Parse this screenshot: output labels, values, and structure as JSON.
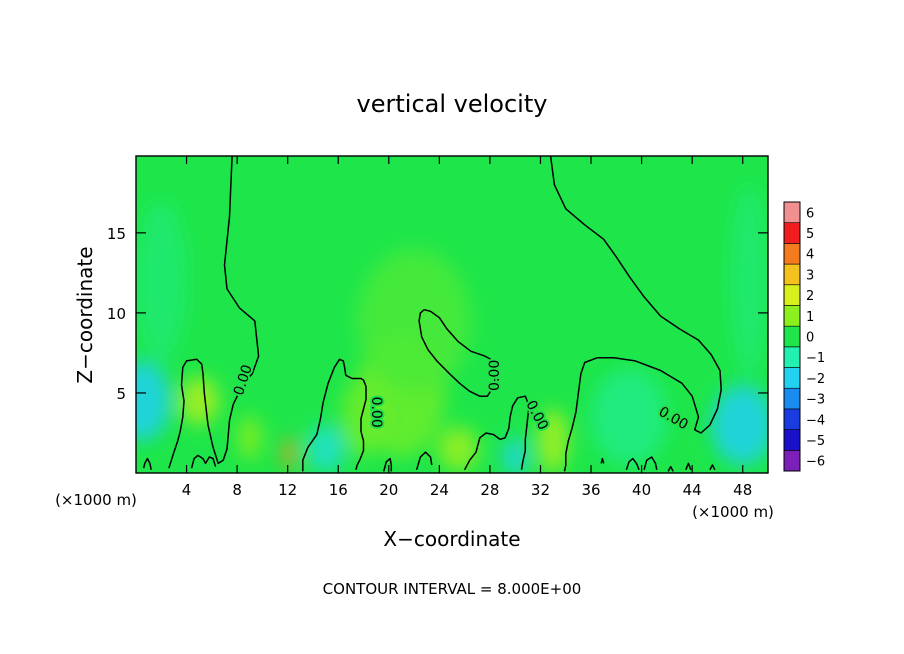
{
  "chart_data": {
    "type": "heatmap",
    "title": "vertical velocity",
    "xlabel": "X−coordinate",
    "ylabel": "Z−coordinate",
    "x_unit": "(×1000 m)",
    "x_unit_right": "(×1000 m)",
    "xlim": [
      0,
      50
    ],
    "ylim": [
      0,
      19.8
    ],
    "x_ticks": [
      4,
      8,
      12,
      16,
      20,
      24,
      28,
      32,
      36,
      40,
      44,
      48
    ],
    "x_tick_labels": [
      "4",
      "8",
      "12",
      "16",
      "20",
      "24",
      "28",
      "32",
      "36",
      "40",
      "44",
      "48"
    ],
    "y_ticks": [
      5,
      10,
      15
    ],
    "y_tick_labels": [
      "5",
      "10",
      "15"
    ],
    "colorbar": {
      "levels": [
        -6,
        -5,
        -4,
        -3,
        -2,
        -1,
        0,
        1,
        2,
        3,
        4,
        5,
        6
      ],
      "labels": [
        "−6",
        "−5",
        "−4",
        "−3",
        "−2",
        "−1",
        "0",
        "1",
        "2",
        "3",
        "4",
        "5",
        "6"
      ],
      "colors": [
        "#7a1fb8",
        "#1a10c8",
        "#1a3be0",
        "#1a8cf0",
        "#22d0f0",
        "#22f0b0",
        "#1ee64a",
        "#8cf01e",
        "#d8f01e",
        "#f4c21e",
        "#f47a1e",
        "#f01e1e",
        "#f09090"
      ]
    },
    "background_value": 0,
    "zero_contour_label": "0.00",
    "anomalies": [
      {
        "x": 0.5,
        "z": 4.5,
        "value": -2.0,
        "rx": 2.2,
        "rz": 2.5
      },
      {
        "x": 5.0,
        "z": 4.5,
        "value": 1.4,
        "rx": 1.6,
        "rz": 1.5
      },
      {
        "x": 9.0,
        "z": 2.2,
        "value": 0.9,
        "rx": 1.0,
        "rz": 1.4
      },
      {
        "x": 12.1,
        "z": 1.2,
        "value": 3.6,
        "rx": 0.5,
        "rz": 1.0
      },
      {
        "x": 15.0,
        "z": 1.5,
        "value": -1.5,
        "rx": 1.5,
        "rz": 1.5
      },
      {
        "x": 18.0,
        "z": 3.5,
        "value": 0.7,
        "rx": 1.8,
        "rz": 2.5
      },
      {
        "x": 21.0,
        "z": 5.0,
        "value": 0.7,
        "rx": 3.5,
        "rz": 4.0
      },
      {
        "x": 22.0,
        "z": 9.5,
        "value": 0.4,
        "rx": 4.5,
        "rz": 4.5
      },
      {
        "x": 25.5,
        "z": 1.5,
        "value": 1.2,
        "rx": 1.6,
        "rz": 1.4
      },
      {
        "x": 30.0,
        "z": 1.0,
        "value": -1.8,
        "rx": 1.0,
        "rz": 1.2
      },
      {
        "x": 33.0,
        "z": 2.0,
        "value": 1.4,
        "rx": 1.2,
        "rz": 2.0
      },
      {
        "x": 39.0,
        "z": 3.5,
        "value": -0.6,
        "rx": 3.0,
        "rz": 3.0
      },
      {
        "x": 48.0,
        "z": 3.0,
        "value": -2.0,
        "rx": 2.5,
        "rz": 2.5
      },
      {
        "x": 48.5,
        "z": 12.0,
        "value": -0.4,
        "rx": 1.5,
        "rz": 6.0
      },
      {
        "x": 2.0,
        "z": 12.0,
        "value": -0.4,
        "rx": 2.0,
        "rz": 5.0
      }
    ],
    "zero_contours": [
      [
        [
          7.6,
          19.8
        ],
        [
          7.4,
          16
        ],
        [
          7.0,
          13
        ],
        [
          7.2,
          11.5
        ],
        [
          8.2,
          10.3
        ],
        [
          9.4,
          9.5
        ],
        [
          9.7,
          7.3
        ],
        [
          9.2,
          6.2
        ],
        [
          8.6,
          5.7
        ],
        [
          8.2,
          5.1
        ],
        [
          7.7,
          4.3
        ],
        [
          7.4,
          3.3
        ],
        [
          7.3,
          2.4
        ],
        [
          7.2,
          1.5
        ],
        [
          6.9,
          0.8
        ],
        [
          6.5,
          0.6
        ],
        [
          6.1,
          1.6
        ],
        [
          5.7,
          3.0
        ],
        [
          5.4,
          5.0
        ],
        [
          5.3,
          6.2
        ],
        [
          5.2,
          6.8
        ],
        [
          4.8,
          7.1
        ],
        [
          4.0,
          7.0
        ],
        [
          3.7,
          6.6
        ],
        [
          3.6,
          5.5
        ],
        [
          3.8,
          4.5
        ],
        [
          3.7,
          3.5
        ],
        [
          3.5,
          2.6
        ],
        [
          3.3,
          2.0
        ],
        [
          3.0,
          1.3
        ],
        [
          2.8,
          0.8
        ],
        [
          2.6,
          0.3
        ]
      ],
      [
        [
          1.2,
          0.2
        ],
        [
          1.1,
          0.6
        ],
        [
          0.9,
          0.9
        ],
        [
          0.7,
          0.6
        ],
        [
          0.6,
          0.3
        ]
      ],
      [
        [
          4.4,
          0.3
        ],
        [
          4.6,
          0.9
        ],
        [
          4.9,
          1.1
        ],
        [
          5.3,
          0.9
        ],
        [
          5.5,
          0.6
        ],
        [
          5.8,
          1.0
        ],
        [
          6.1,
          0.9
        ],
        [
          6.3,
          0.4
        ]
      ],
      [
        [
          13.2,
          0.1
        ],
        [
          13.2,
          0.8
        ],
        [
          13.6,
          1.6
        ],
        [
          14.3,
          2.4
        ],
        [
          14.6,
          3.4
        ],
        [
          14.8,
          4.4
        ],
        [
          15.2,
          5.6
        ],
        [
          15.7,
          6.6
        ],
        [
          16.1,
          7.1
        ],
        [
          16.4,
          7.0
        ],
        [
          16.5,
          6.6
        ],
        [
          16.6,
          6.1
        ],
        [
          17.1,
          5.9
        ],
        [
          17.8,
          5.9
        ],
        [
          18.0,
          5.8
        ],
        [
          18.2,
          5.4
        ],
        [
          18.2,
          4.6
        ],
        [
          18.0,
          4.0
        ],
        [
          17.8,
          3.4
        ],
        [
          17.8,
          2.6
        ],
        [
          18.0,
          2.0
        ],
        [
          18.0,
          1.4
        ],
        [
          17.7,
          0.8
        ],
        [
          17.5,
          0.5
        ],
        [
          17.4,
          0.2
        ]
      ],
      [
        [
          19.6,
          0.1
        ],
        [
          19.8,
          0.7
        ],
        [
          20.1,
          0.9
        ],
        [
          20.2,
          0.5
        ],
        [
          20.2,
          0.1
        ]
      ],
      [
        [
          22.2,
          0.2
        ],
        [
          22.5,
          1.0
        ],
        [
          22.9,
          1.3
        ],
        [
          23.3,
          1.0
        ],
        [
          23.4,
          0.5
        ]
      ],
      [
        [
          28.2,
          5.3
        ],
        [
          28.4,
          5.8
        ],
        [
          28.5,
          6.5
        ],
        [
          28.3,
          7.0
        ],
        [
          27.6,
          7.3
        ],
        [
          26.5,
          7.6
        ],
        [
          25.5,
          8.2
        ],
        [
          24.6,
          9.0
        ],
        [
          24.0,
          9.7
        ],
        [
          23.3,
          10.1
        ],
        [
          22.8,
          10.2
        ],
        [
          22.5,
          10.0
        ],
        [
          22.4,
          9.5
        ],
        [
          22.6,
          8.5
        ],
        [
          23.1,
          7.7
        ],
        [
          23.8,
          7.0
        ],
        [
          24.8,
          6.2
        ],
        [
          25.6,
          5.6
        ],
        [
          26.4,
          5.1
        ],
        [
          27.2,
          4.8
        ],
        [
          27.8,
          4.8
        ],
        [
          28.2,
          5.3
        ]
      ],
      [
        [
          26.0,
          0.2
        ],
        [
          26.4,
          0.8
        ],
        [
          26.9,
          1.3
        ],
        [
          27.2,
          2.2
        ],
        [
          27.7,
          2.5
        ],
        [
          28.3,
          2.4
        ],
        [
          28.8,
          2.1
        ],
        [
          29.2,
          2.2
        ],
        [
          29.5,
          2.8
        ],
        [
          29.6,
          3.5
        ],
        [
          29.8,
          4.2
        ],
        [
          30.2,
          4.7
        ],
        [
          30.8,
          4.8
        ],
        [
          31.1,
          4.2
        ],
        [
          31.0,
          3.5
        ],
        [
          30.9,
          2.8
        ],
        [
          30.8,
          2.1
        ],
        [
          30.8,
          1.4
        ],
        [
          30.6,
          0.7
        ],
        [
          30.5,
          0.2
        ]
      ],
      [
        [
          32.8,
          19.8
        ],
        [
          33.1,
          18.0
        ],
        [
          34.0,
          16.5
        ],
        [
          35.5,
          15.5
        ],
        [
          37.0,
          14.6
        ],
        [
          38.0,
          13.5
        ],
        [
          39.0,
          12.3
        ],
        [
          40.2,
          11.0
        ],
        [
          41.5,
          9.8
        ],
        [
          43.0,
          9.0
        ],
        [
          44.5,
          8.3
        ],
        [
          45.5,
          7.4
        ],
        [
          46.2,
          6.4
        ],
        [
          46.3,
          5.2
        ],
        [
          46.0,
          4.0
        ],
        [
          45.4,
          3.0
        ],
        [
          44.7,
          2.5
        ],
        [
          44.2,
          2.7
        ],
        [
          44.5,
          3.5
        ],
        [
          44.0,
          4.8
        ],
        [
          43.2,
          5.6
        ],
        [
          41.5,
          6.4
        ],
        [
          39.5,
          7.0
        ],
        [
          37.8,
          7.2
        ],
        [
          36.5,
          7.2
        ],
        [
          35.5,
          6.9
        ],
        [
          35.2,
          6.2
        ],
        [
          35.0,
          5.0
        ],
        [
          34.8,
          3.8
        ],
        [
          34.5,
          2.8
        ],
        [
          34.2,
          2.0
        ],
        [
          34.0,
          1.2
        ],
        [
          34.0,
          0.5
        ],
        [
          33.9,
          0.1
        ]
      ],
      [
        [
          36.8,
          0.6
        ],
        [
          36.9,
          0.9
        ],
        [
          37.0,
          0.6
        ]
      ],
      [
        [
          38.8,
          0.2
        ],
        [
          39.0,
          0.7
        ],
        [
          39.3,
          0.9
        ],
        [
          39.6,
          0.6
        ],
        [
          39.8,
          0.2
        ]
      ],
      [
        [
          40.2,
          0.2
        ],
        [
          40.4,
          0.8
        ],
        [
          40.8,
          1.0
        ],
        [
          41.1,
          0.6
        ],
        [
          41.2,
          0.2
        ]
      ],
      [
        [
          42.1,
          0.1
        ],
        [
          42.3,
          0.4
        ],
        [
          42.5,
          0.1
        ]
      ],
      [
        [
          43.5,
          0.2
        ],
        [
          43.7,
          0.6
        ],
        [
          43.9,
          0.2
        ]
      ],
      [
        [
          45.4,
          0.2
        ],
        [
          45.6,
          0.5
        ],
        [
          45.8,
          0.2
        ]
      ]
    ],
    "contour_labels": [
      {
        "x": 8.5,
        "z": 5.8,
        "text": "0.00",
        "angle": -72
      },
      {
        "x": 19.0,
        "z": 3.8,
        "text": "0.00",
        "angle": 90
      },
      {
        "x": 28.4,
        "z": 6.1,
        "text": "0.00",
        "angle": -90
      },
      {
        "x": 31.7,
        "z": 3.6,
        "text": "0.00",
        "angle": 62
      },
      {
        "x": 42.5,
        "z": 3.4,
        "text": "0.00",
        "angle": 30
      }
    ],
    "footer": "CONTOUR INTERVAL = 8.000E+00"
  }
}
